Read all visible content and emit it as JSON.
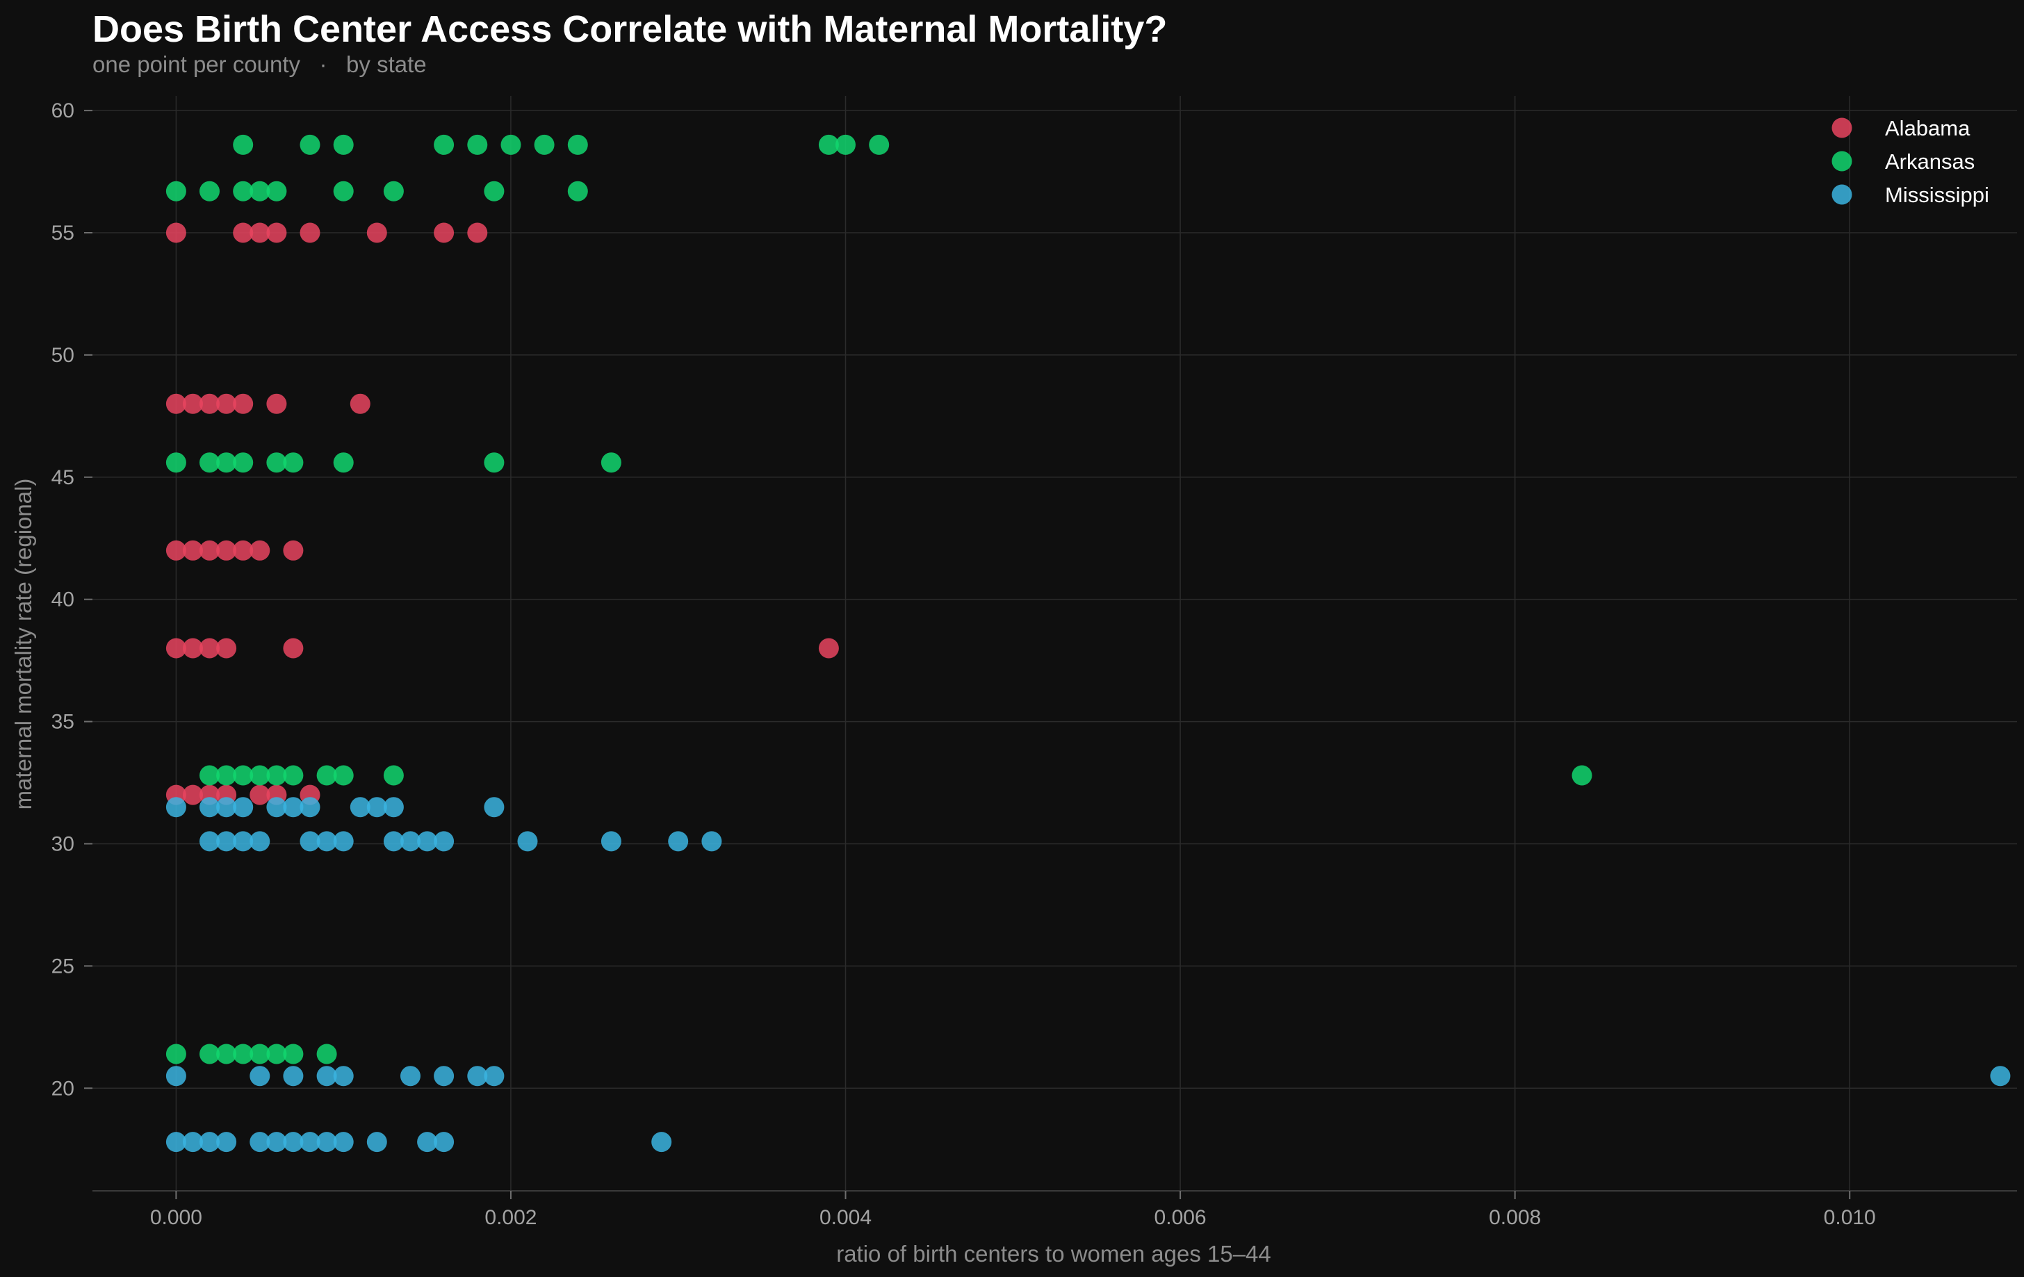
{
  "chart_data": {
    "type": "scatter",
    "title": "Does Birth Center Access Correlate with Maternal Mortality?",
    "subtitle": "one point per county   ·   by state",
    "xlabel": "ratio of birth centers to women ages 15–44",
    "ylabel": "maternal mortality rate (regional)",
    "xlim": [
      -0.0005,
      0.011
    ],
    "ylim": [
      15.8,
      60.6
    ],
    "xticks": [
      0.0,
      0.002,
      0.004,
      0.006,
      0.008,
      0.01
    ],
    "xtick_labels": [
      "0.000",
      "0.002",
      "0.004",
      "0.006",
      "0.008",
      "0.010"
    ],
    "yticks": [
      20,
      25,
      30,
      35,
      40,
      45,
      50,
      55,
      60
    ],
    "ytick_labels": [
      "20",
      "25",
      "30",
      "35",
      "40",
      "45",
      "50",
      "55",
      "60"
    ],
    "grid": true,
    "legend_position": "top-right",
    "series": [
      {
        "name": "Alabama",
        "color": "#e8445f",
        "points": [
          [
            0.0,
            55.0
          ],
          [
            0.0004,
            55.0
          ],
          [
            0.0005,
            55.0
          ],
          [
            0.0006,
            55.0
          ],
          [
            0.0008,
            55.0
          ],
          [
            0.0012,
            55.0
          ],
          [
            0.0016,
            55.0
          ],
          [
            0.0018,
            55.0
          ],
          [
            0.0,
            48.0
          ],
          [
            0.0001,
            48.0
          ],
          [
            0.0002,
            48.0
          ],
          [
            0.0003,
            48.0
          ],
          [
            0.0004,
            48.0
          ],
          [
            0.0006,
            48.0
          ],
          [
            0.0011,
            48.0
          ],
          [
            0.0,
            42.0
          ],
          [
            0.0001,
            42.0
          ],
          [
            0.0002,
            42.0
          ],
          [
            0.0003,
            42.0
          ],
          [
            0.0004,
            42.0
          ],
          [
            0.0005,
            42.0
          ],
          [
            0.0007,
            42.0
          ],
          [
            0.0,
            38.0
          ],
          [
            0.0001,
            38.0
          ],
          [
            0.0002,
            38.0
          ],
          [
            0.0003,
            38.0
          ],
          [
            0.0007,
            38.0
          ],
          [
            0.0039,
            38.0
          ],
          [
            0.0,
            32.0
          ],
          [
            0.0001,
            32.0
          ],
          [
            0.0002,
            32.0
          ],
          [
            0.0003,
            32.0
          ],
          [
            0.0005,
            32.0
          ],
          [
            0.0006,
            32.0
          ],
          [
            0.0008,
            32.0
          ]
        ]
      },
      {
        "name": "Arkansas",
        "color": "#12d66f",
        "points": [
          [
            0.0004,
            58.6
          ],
          [
            0.0008,
            58.6
          ],
          [
            0.001,
            58.6
          ],
          [
            0.0016,
            58.6
          ],
          [
            0.0018,
            58.6
          ],
          [
            0.002,
            58.6
          ],
          [
            0.0022,
            58.6
          ],
          [
            0.0024,
            58.6
          ],
          [
            0.0039,
            58.6
          ],
          [
            0.004,
            58.6
          ],
          [
            0.0042,
            58.6
          ],
          [
            0.0,
            56.7
          ],
          [
            0.0002,
            56.7
          ],
          [
            0.0004,
            56.7
          ],
          [
            0.0005,
            56.7
          ],
          [
            0.0006,
            56.7
          ],
          [
            0.001,
            56.7
          ],
          [
            0.0013,
            56.7
          ],
          [
            0.0019,
            56.7
          ],
          [
            0.0024,
            56.7
          ],
          [
            0.0,
            45.6
          ],
          [
            0.0002,
            45.6
          ],
          [
            0.0003,
            45.6
          ],
          [
            0.0004,
            45.6
          ],
          [
            0.0006,
            45.6
          ],
          [
            0.0007,
            45.6
          ],
          [
            0.001,
            45.6
          ],
          [
            0.0019,
            45.6
          ],
          [
            0.0026,
            45.6
          ],
          [
            0.0002,
            32.8
          ],
          [
            0.0003,
            32.8
          ],
          [
            0.0004,
            32.8
          ],
          [
            0.0005,
            32.8
          ],
          [
            0.0006,
            32.8
          ],
          [
            0.0007,
            32.8
          ],
          [
            0.0009,
            32.8
          ],
          [
            0.001,
            32.8
          ],
          [
            0.0013,
            32.8
          ],
          [
            0.0084,
            32.8
          ],
          [
            0.0,
            21.4
          ],
          [
            0.0002,
            21.4
          ],
          [
            0.0003,
            21.4
          ],
          [
            0.0004,
            21.4
          ],
          [
            0.0005,
            21.4
          ],
          [
            0.0006,
            21.4
          ],
          [
            0.0007,
            21.4
          ],
          [
            0.0009,
            21.4
          ]
        ]
      },
      {
        "name": "Mississippi",
        "color": "#3bb4e0",
        "points": [
          [
            0.0,
            31.5
          ],
          [
            0.0002,
            31.5
          ],
          [
            0.0003,
            31.5
          ],
          [
            0.0004,
            31.5
          ],
          [
            0.0006,
            31.5
          ],
          [
            0.0007,
            31.5
          ],
          [
            0.0008,
            31.5
          ],
          [
            0.0011,
            31.5
          ],
          [
            0.0012,
            31.5
          ],
          [
            0.0013,
            31.5
          ],
          [
            0.0019,
            31.5
          ],
          [
            0.0002,
            30.1
          ],
          [
            0.0003,
            30.1
          ],
          [
            0.0004,
            30.1
          ],
          [
            0.0005,
            30.1
          ],
          [
            0.0008,
            30.1
          ],
          [
            0.0009,
            30.1
          ],
          [
            0.001,
            30.1
          ],
          [
            0.0013,
            30.1
          ],
          [
            0.0014,
            30.1
          ],
          [
            0.0015,
            30.1
          ],
          [
            0.0016,
            30.1
          ],
          [
            0.0021,
            30.1
          ],
          [
            0.0026,
            30.1
          ],
          [
            0.003,
            30.1
          ],
          [
            0.0032,
            30.1
          ],
          [
            0.0,
            20.5
          ],
          [
            0.0005,
            20.5
          ],
          [
            0.0007,
            20.5
          ],
          [
            0.0009,
            20.5
          ],
          [
            0.001,
            20.5
          ],
          [
            0.0014,
            20.5
          ],
          [
            0.0016,
            20.5
          ],
          [
            0.0018,
            20.5
          ],
          [
            0.0019,
            20.5
          ],
          [
            0.0109,
            20.5
          ],
          [
            0.0,
            17.8
          ],
          [
            0.0001,
            17.8
          ],
          [
            0.0002,
            17.8
          ],
          [
            0.0003,
            17.8
          ],
          [
            0.0005,
            17.8
          ],
          [
            0.0006,
            17.8
          ],
          [
            0.0007,
            17.8
          ],
          [
            0.0008,
            17.8
          ],
          [
            0.0009,
            17.8
          ],
          [
            0.001,
            17.8
          ],
          [
            0.0012,
            17.8
          ],
          [
            0.0015,
            17.8
          ],
          [
            0.0016,
            17.8
          ],
          [
            0.0029,
            17.8
          ]
        ]
      }
    ]
  }
}
